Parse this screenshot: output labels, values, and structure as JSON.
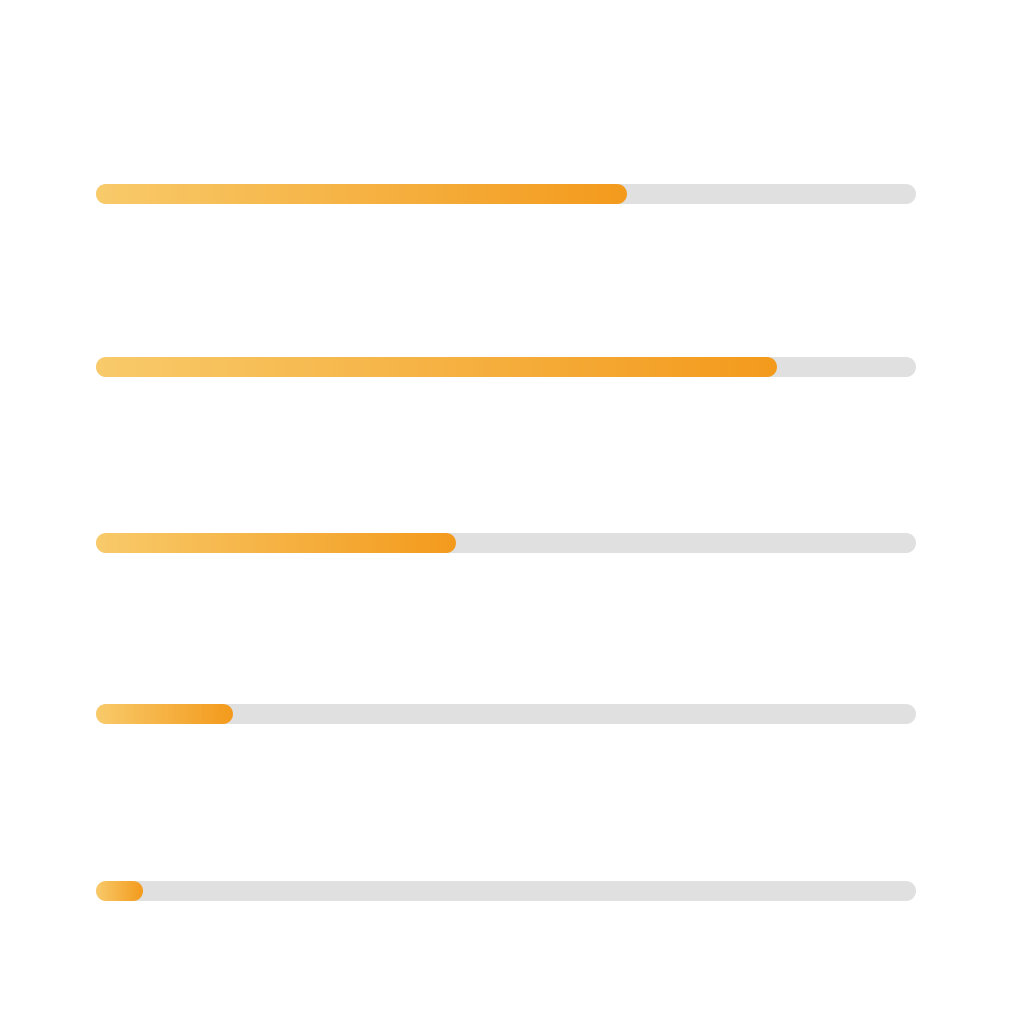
{
  "colors": {
    "track": "#e0e0e0",
    "fill_start": "#f8ca6a",
    "fill_end": "#f39a1c"
  },
  "progress_bars": [
    {
      "value": 0.647
    },
    {
      "value": 0.831
    },
    {
      "value": 0.439
    },
    {
      "value": 0.167
    },
    {
      "value": 0.057
    }
  ]
}
